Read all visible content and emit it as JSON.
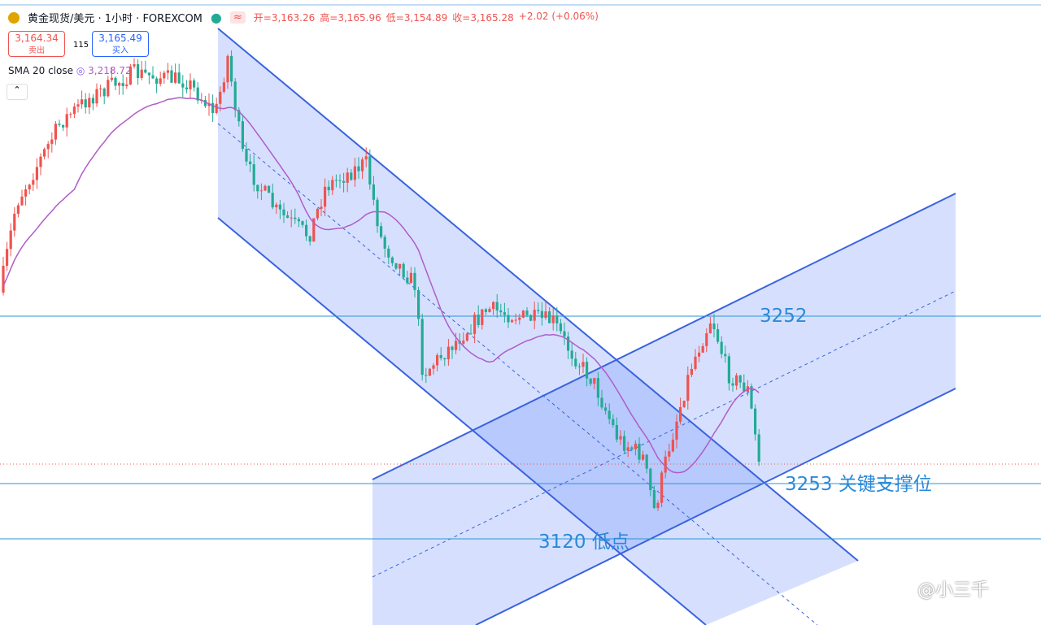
{
  "header": {
    "symbol": "黄金现货/美元 · 1小时 · FOREXCOM",
    "quote": [
      "开=3,163.26",
      "高=3,165.96",
      "低=3,154.89",
      "收=3,165.28",
      "+2.02 (+0.06%)"
    ]
  },
  "trade": {
    "sell_price": "3,164.34",
    "sell_label": "卖出",
    "spread": "115",
    "buy_price": "3,165.49",
    "buy_label": "买入"
  },
  "indicator": {
    "name": "SMA 20 close",
    "value": "3,218.72"
  },
  "annotations": [
    "3252",
    "3253 关键支撑位",
    "3120 低点"
  ],
  "watermark": "@小三千"
}
